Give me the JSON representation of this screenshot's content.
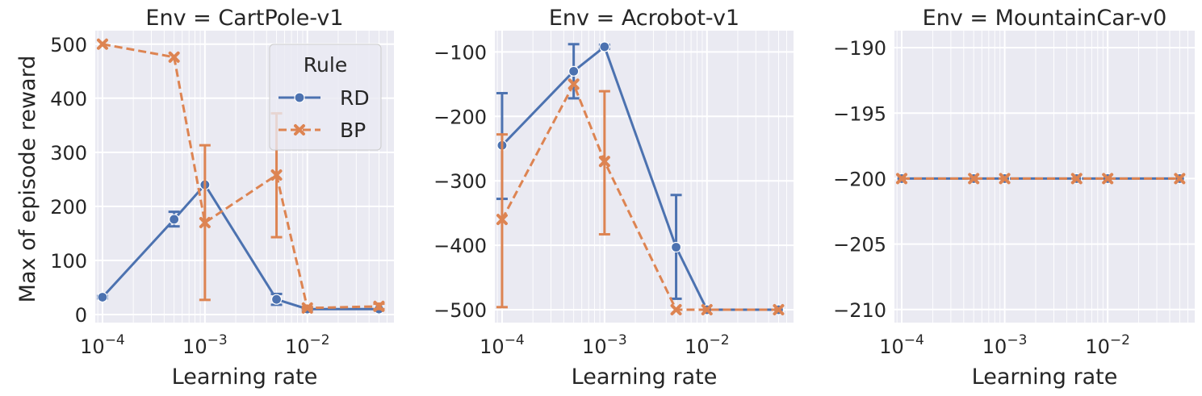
{
  "colors": {
    "RD": "#4c72b0",
    "BP": "#dd8452",
    "panel_bg": "#eaeaf2",
    "grid": "#ffffff"
  },
  "legend": {
    "title": "Rule",
    "entries": [
      "RD",
      "BP"
    ]
  },
  "x_tick_labels": [
    {
      "base": "10",
      "exp": "−4"
    },
    {
      "base": "10",
      "exp": "−3"
    },
    {
      "base": "10",
      "exp": "−2"
    }
  ],
  "chart_data": [
    {
      "type": "line",
      "title": "Env = CartPole-v1",
      "xlabel": "Learning rate",
      "ylabel": "Max of episode reward",
      "xscale": "log",
      "xlim": [
        8.5e-05,
        0.07
      ],
      "ylim": [
        -15,
        525
      ],
      "yticks": [
        0,
        100,
        200,
        300,
        400,
        500
      ],
      "yticklabels": [
        "0",
        "100",
        "200",
        "300",
        "400",
        "500"
      ],
      "legend_placement": "top-right",
      "series": [
        {
          "name": "RD",
          "style": "solid",
          "marker": "circle",
          "x": [
            0.0001,
            0.0005,
            0.001,
            0.005,
            0.01,
            0.05
          ],
          "y": [
            32,
            176,
            240,
            28,
            10,
            10
          ],
          "err": [
            [
              30,
              34
            ],
            [
              163,
              190
            ],
            [
              null,
              null
            ],
            [
              18,
              38
            ],
            [
              8,
              12
            ],
            [
              null,
              null
            ]
          ]
        },
        {
          "name": "BP",
          "style": "dashed",
          "marker": "x",
          "x": [
            0.0001,
            0.0005,
            0.001,
            0.005,
            0.01,
            0.05
          ],
          "y": [
            500,
            476,
            170,
            258,
            12,
            15
          ],
          "err": [
            [
              null,
              null
            ],
            [
              null,
              null
            ],
            [
              27,
              313
            ],
            [
              143,
              372
            ],
            [
              10,
              14
            ],
            [
              10,
              20
            ]
          ]
        }
      ]
    },
    {
      "type": "line",
      "title": "Env = Acrobot-v1",
      "xlabel": "Learning rate",
      "ylabel": "",
      "xscale": "log",
      "xlim": [
        8.5e-05,
        0.07
      ],
      "ylim": [
        -520,
        -67
      ],
      "yticks": [
        -500,
        -400,
        -300,
        -200,
        -100
      ],
      "yticklabels": [
        "−500",
        "−400",
        "−300",
        "−200",
        "−100"
      ],
      "series": [
        {
          "name": "RD",
          "style": "solid",
          "marker": "circle",
          "x": [
            0.0001,
            0.0005,
            0.001,
            0.005,
            0.01,
            0.05
          ],
          "y": [
            -245,
            -130,
            -92,
            -403,
            -500,
            -500
          ],
          "err": [
            [
              -328,
              -164
            ],
            [
              -172,
              -88
            ],
            [
              -95,
              -89
            ],
            [
              -483,
              -322
            ],
            [
              null,
              null
            ],
            [
              null,
              null
            ]
          ]
        },
        {
          "name": "BP",
          "style": "dashed",
          "marker": "x",
          "x": [
            0.0001,
            0.0005,
            0.001,
            0.005,
            0.01,
            0.05
          ],
          "y": [
            -360,
            -150,
            -270,
            -500,
            -500,
            -500
          ],
          "err": [
            [
              -496,
              -228
            ],
            [
              null,
              null
            ],
            [
              -383,
              -161
            ],
            [
              null,
              null
            ],
            [
              null,
              null
            ],
            [
              null,
              null
            ]
          ]
        }
      ]
    },
    {
      "type": "line",
      "title": "Env = MountainCar-v0",
      "xlabel": "Learning rate",
      "ylabel": "",
      "xscale": "log",
      "xlim": [
        8.5e-05,
        0.07
      ],
      "ylim": [
        -211,
        -188.7
      ],
      "yticks": [
        -210,
        -205,
        -200,
        -195,
        -190
      ],
      "yticklabels": [
        "−210",
        "−205",
        "−200",
        "−195",
        "−190"
      ],
      "series": [
        {
          "name": "RD",
          "style": "solid",
          "marker": "circle",
          "x": [
            0.0001,
            0.0005,
            0.001,
            0.005,
            0.01,
            0.05
          ],
          "y": [
            -200,
            -200,
            -200,
            -200,
            -200,
            -200
          ],
          "err": [
            [
              null,
              null
            ],
            [
              null,
              null
            ],
            [
              null,
              null
            ],
            [
              null,
              null
            ],
            [
              null,
              null
            ],
            [
              null,
              null
            ]
          ]
        },
        {
          "name": "BP",
          "style": "dashed",
          "marker": "x",
          "x": [
            0.0001,
            0.0005,
            0.001,
            0.005,
            0.01,
            0.05
          ],
          "y": [
            -200,
            -200,
            -200,
            -200,
            -200,
            -200
          ],
          "err": [
            [
              null,
              null
            ],
            [
              null,
              null
            ],
            [
              null,
              null
            ],
            [
              null,
              null
            ],
            [
              null,
              null
            ],
            [
              null,
              null
            ]
          ]
        }
      ]
    }
  ]
}
